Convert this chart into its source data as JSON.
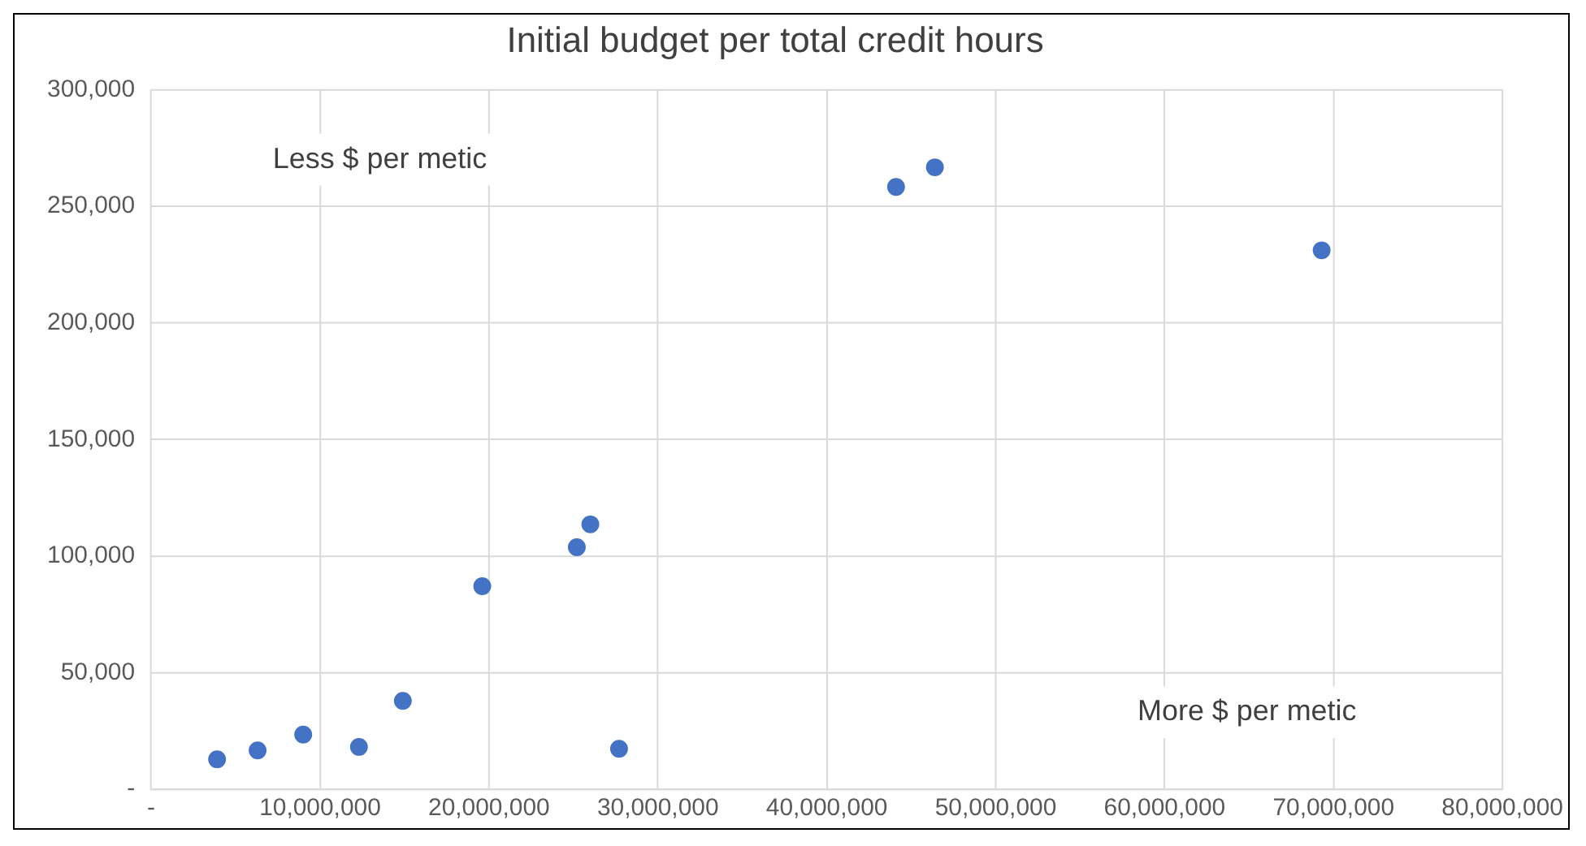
{
  "chart_data": {
    "type": "scatter",
    "title": "Initial budget per total credit hours",
    "x": [
      3900000,
      6300000,
      9000000,
      12300000,
      14900000,
      19600000,
      25200000,
      26000000,
      27700000,
      44100000,
      46400000,
      69300000
    ],
    "values": [
      12900,
      16700,
      23500,
      18200,
      37900,
      87100,
      103800,
      113600,
      17400,
      258300,
      266700,
      231100
    ],
    "color": "#4472c4",
    "marker": "circle",
    "xlim": [
      0,
      80000000
    ],
    "xticks": [
      {
        "value": 0,
        "label": "-"
      },
      {
        "value": 10000000,
        "label": "10,000,000"
      },
      {
        "value": 20000000,
        "label": "20,000,000"
      },
      {
        "value": 30000000,
        "label": "30,000,000"
      },
      {
        "value": 40000000,
        "label": "40,000,000"
      },
      {
        "value": 50000000,
        "label": "50,000,000"
      },
      {
        "value": 60000000,
        "label": "60,000,000"
      },
      {
        "value": 70000000,
        "label": "70,000,000"
      },
      {
        "value": 80000000,
        "label": "80,000,000"
      }
    ],
    "ylim": [
      0,
      300000
    ],
    "yticks": [
      {
        "value": 0,
        "label": "-"
      },
      {
        "value": 50000,
        "label": "50,000"
      },
      {
        "value": 100000,
        "label": "100,000"
      },
      {
        "value": 150000,
        "label": "150,000"
      },
      {
        "value": 200000,
        "label": "200,000"
      },
      {
        "value": 250000,
        "label": "250,000"
      },
      {
        "value": 300000,
        "label": "300,000"
      }
    ],
    "grid": true,
    "legend": false,
    "annotations": [
      "Less $ per metic",
      "More $ per metic"
    ]
  }
}
